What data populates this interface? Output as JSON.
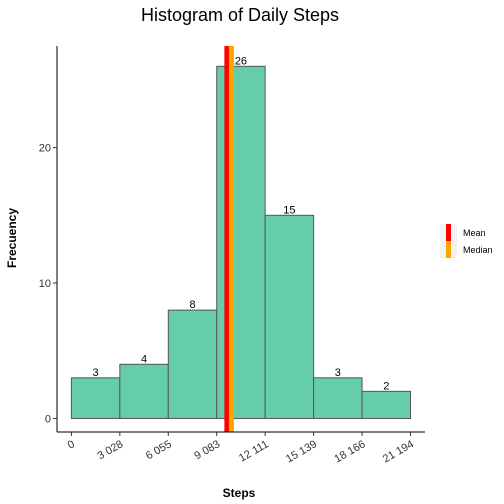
{
  "chart_data": {
    "type": "bar",
    "title": "Histogram of Daily Steps",
    "xlabel": "Steps",
    "ylabel": "Frecuency",
    "bin_edges": [
      0,
      3028,
      6055,
      9083,
      12111,
      15139,
      18166,
      21194
    ],
    "x_tick_labels": [
      "0",
      "3 028",
      "6 055",
      "9 083",
      "12 111",
      "15 139",
      "18 166",
      "21 194"
    ],
    "values": [
      3,
      4,
      8,
      26,
      15,
      3,
      2
    ],
    "y_ticks": [
      0,
      10,
      20
    ],
    "ylim": [
      -1,
      27.5
    ],
    "xlim": [
      -900,
      22100
    ],
    "bar_color": "#66CDAA",
    "bar_stroke": "#555555",
    "mean": 9718,
    "median": 10000,
    "mean_color": "#FF0000",
    "median_color": "#FFA500",
    "legend": [
      {
        "name": "Mean",
        "color": "#FF0000"
      },
      {
        "name": "Median",
        "color": "#FFA500"
      }
    ],
    "legend_position": "right",
    "grid": false
  }
}
